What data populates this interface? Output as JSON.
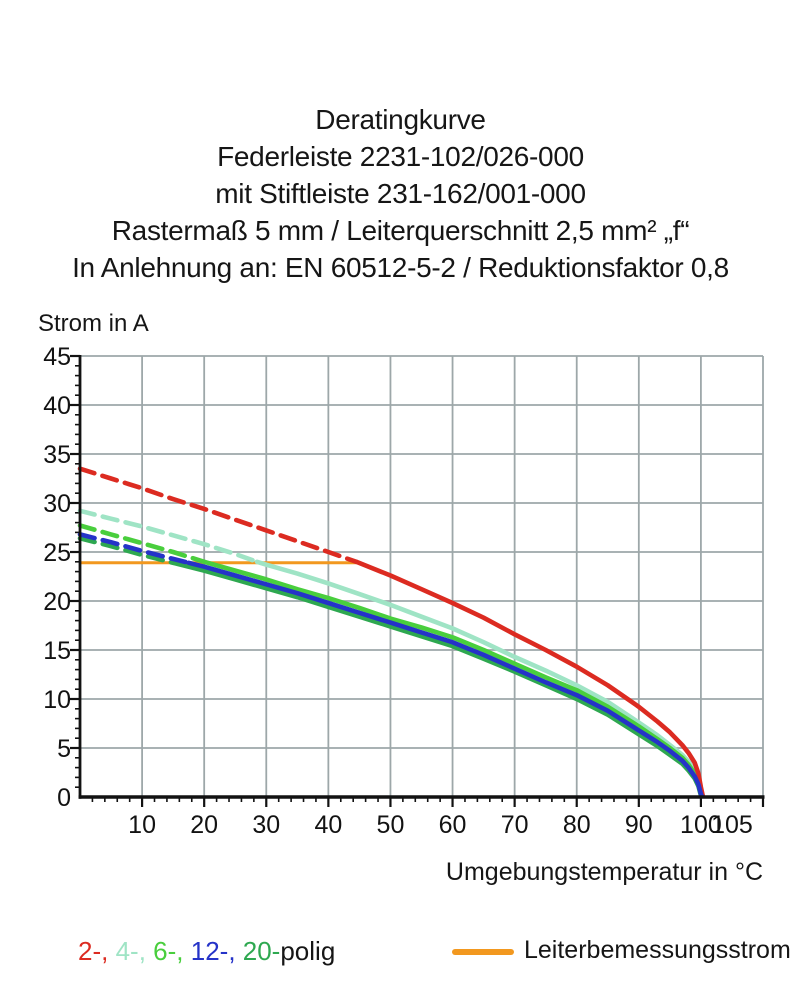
{
  "title": {
    "lines": [
      "Deratingkurve",
      "Federleiste 2231-102/026-000",
      "mit Stiftleiste 231-162/001-000",
      "Rastermaß 5 mm / Leiterquerschnitt 2,5 mm² „f“",
      "In Anlehnung an: EN 60512-5-2 / Reduktionsfaktor 0,8"
    ]
  },
  "chart_data": {
    "type": "line",
    "title": "Deratingkurve",
    "xlabel": "Umgebungstemperatur in °C",
    "ylabel": "Strom in A",
    "xlim": [
      0,
      110
    ],
    "ylim": [
      0,
      45
    ],
    "grid": true,
    "x_grid_step": 10,
    "y_grid_step": 5,
    "x_minor_step": 2,
    "y_minor_step": 1,
    "x_ticks": [
      10,
      20,
      30,
      40,
      50,
      60,
      70,
      80,
      90,
      100,
      105
    ],
    "y_ticks": [
      0,
      5,
      10,
      15,
      20,
      25,
      30,
      35,
      40,
      45
    ],
    "grid_color": "#9DA7A9",
    "axis_color": "#121212",
    "rated_current_line": {
      "name": "Leiterbemessungsstrom",
      "current_a": 23.9,
      "x_start": 0,
      "x_end": 44.5,
      "color": "#F2981F"
    },
    "series": [
      {
        "name": "2-polig",
        "color": "#DC2B21",
        "dashed_until_x": 44.5,
        "points": [
          [
            0,
            33.5
          ],
          [
            5,
            32.5
          ],
          [
            10,
            31.5
          ],
          [
            15,
            30.4
          ],
          [
            20,
            29.4
          ],
          [
            25,
            28.3
          ],
          [
            30,
            27.2
          ],
          [
            35,
            26.1
          ],
          [
            40,
            25.0
          ],
          [
            44.5,
            24.0
          ],
          [
            50,
            22.6
          ],
          [
            55,
            21.2
          ],
          [
            60,
            19.8
          ],
          [
            65,
            18.3
          ],
          [
            70,
            16.6
          ],
          [
            75,
            15.0
          ],
          [
            80,
            13.3
          ],
          [
            85,
            11.4
          ],
          [
            90,
            9.2
          ],
          [
            93,
            7.7
          ],
          [
            95,
            6.6
          ],
          [
            97,
            5.3
          ],
          [
            98,
            4.5
          ],
          [
            99,
            3.5
          ],
          [
            99.6,
            2.4
          ],
          [
            100,
            1.0
          ],
          [
            100.3,
            0.1
          ]
        ]
      },
      {
        "name": "4-polig",
        "color": "#9FE4C5",
        "dashed_until_x": 28.5,
        "points": [
          [
            0,
            29.2
          ],
          [
            5,
            28.4
          ],
          [
            10,
            27.6
          ],
          [
            15,
            26.7
          ],
          [
            20,
            25.8
          ],
          [
            25,
            24.8
          ],
          [
            28.5,
            24.0
          ],
          [
            30,
            23.7
          ],
          [
            35,
            22.8
          ],
          [
            40,
            21.8
          ],
          [
            45,
            20.7
          ],
          [
            50,
            19.6
          ],
          [
            55,
            18.4
          ],
          [
            60,
            17.2
          ],
          [
            65,
            15.8
          ],
          [
            70,
            14.3
          ],
          [
            75,
            12.9
          ],
          [
            80,
            11.4
          ],
          [
            85,
            9.7
          ],
          [
            90,
            7.6
          ],
          [
            93,
            6.3
          ],
          [
            95,
            5.3
          ],
          [
            97,
            4.3
          ],
          [
            98,
            3.6
          ],
          [
            99,
            2.7
          ],
          [
            99.6,
            1.8
          ],
          [
            100,
            0.5
          ],
          [
            100.2,
            0.1
          ]
        ]
      },
      {
        "name": "6-polig",
        "color": "#49CE3D",
        "dashed_until_x": 20,
        "points": [
          [
            0,
            27.7
          ],
          [
            5,
            26.8
          ],
          [
            10,
            25.9
          ],
          [
            15,
            25.0
          ],
          [
            20,
            24.0
          ],
          [
            25,
            23.1
          ],
          [
            30,
            22.2
          ],
          [
            35,
            21.2
          ],
          [
            40,
            20.3
          ],
          [
            45,
            19.3
          ],
          [
            50,
            18.2
          ],
          [
            55,
            17.3
          ],
          [
            60,
            16.3
          ],
          [
            65,
            15.0
          ],
          [
            70,
            13.6
          ],
          [
            75,
            12.2
          ],
          [
            80,
            10.9
          ],
          [
            85,
            9.2
          ],
          [
            90,
            7.2
          ],
          [
            93,
            5.9
          ],
          [
            95,
            5.0
          ],
          [
            97,
            4.0
          ],
          [
            98,
            3.3
          ],
          [
            99,
            2.4
          ],
          [
            99.6,
            1.5
          ],
          [
            100,
            0.4
          ],
          [
            100.2,
            0.1
          ]
        ]
      },
      {
        "name": "12-polig",
        "color": "#2533C8",
        "dashed_until_x": 17.5,
        "points": [
          [
            0,
            26.8
          ],
          [
            5,
            26.0
          ],
          [
            10,
            25.1
          ],
          [
            15,
            24.3
          ],
          [
            17.5,
            23.9
          ],
          [
            20,
            23.5
          ],
          [
            25,
            22.6
          ],
          [
            30,
            21.7
          ],
          [
            35,
            20.8
          ],
          [
            40,
            19.8
          ],
          [
            45,
            18.8
          ],
          [
            50,
            17.8
          ],
          [
            55,
            16.8
          ],
          [
            60,
            15.8
          ],
          [
            65,
            14.5
          ],
          [
            70,
            13.1
          ],
          [
            75,
            11.7
          ],
          [
            80,
            10.4
          ],
          [
            85,
            8.8
          ],
          [
            90,
            6.8
          ],
          [
            93,
            5.6
          ],
          [
            95,
            4.7
          ],
          [
            97,
            3.7
          ],
          [
            98,
            3.0
          ],
          [
            99,
            2.1
          ],
          [
            99.6,
            1.3
          ],
          [
            100,
            0.3
          ],
          [
            100.15,
            0.1
          ]
        ]
      },
      {
        "name": "20-polig",
        "color": "#2EA850",
        "dashed_until_x": 15,
        "points": [
          [
            0,
            26.4
          ],
          [
            5,
            25.6
          ],
          [
            10,
            24.7
          ],
          [
            15,
            23.9
          ],
          [
            20,
            23.1
          ],
          [
            25,
            22.2
          ],
          [
            30,
            21.3
          ],
          [
            35,
            20.4
          ],
          [
            40,
            19.4
          ],
          [
            45,
            18.4
          ],
          [
            50,
            17.4
          ],
          [
            55,
            16.4
          ],
          [
            60,
            15.4
          ],
          [
            65,
            14.1
          ],
          [
            70,
            12.8
          ],
          [
            75,
            11.4
          ],
          [
            80,
            10.0
          ],
          [
            85,
            8.4
          ],
          [
            90,
            6.4
          ],
          [
            93,
            5.2
          ],
          [
            95,
            4.3
          ],
          [
            97,
            3.4
          ],
          [
            98,
            2.7
          ],
          [
            99,
            1.9
          ],
          [
            99.6,
            1.1
          ],
          [
            100,
            0.15
          ]
        ]
      }
    ]
  },
  "legend": {
    "pole_items": [
      {
        "text": "2-, ",
        "color": "#DC2B21"
      },
      {
        "text": "4-, ",
        "color": "#9FE4C5"
      },
      {
        "text": "6-, ",
        "color": "#49CE3D"
      },
      {
        "text": "12-, ",
        "color": "#2533C8"
      },
      {
        "text": "20-",
        "color": "#2EA850"
      },
      {
        "text": "polig",
        "color": "#161616"
      }
    ],
    "rated_label": "Leiterbemessungsstrom",
    "rated_swatch_color": "#F2981F"
  }
}
